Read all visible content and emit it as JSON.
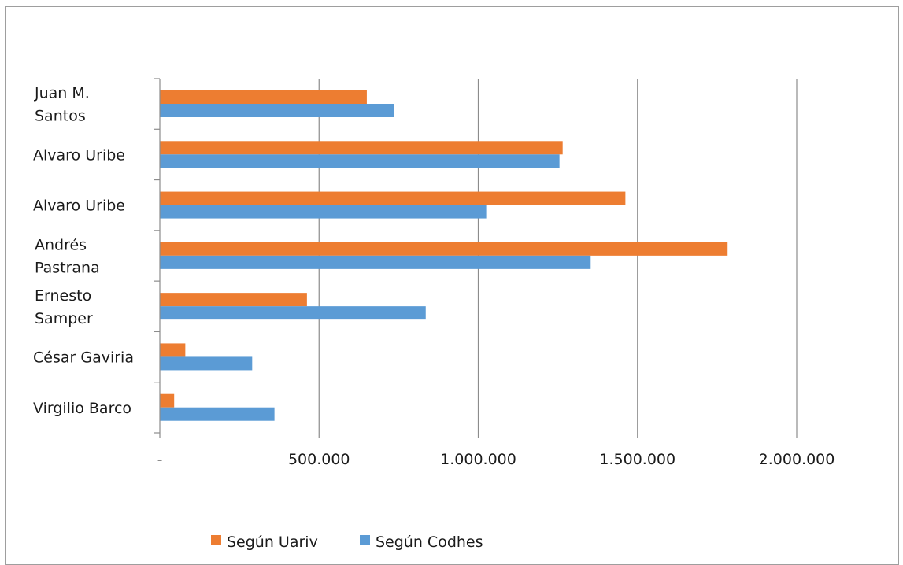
{
  "chart_data": {
    "type": "bar",
    "orientation": "horizontal",
    "categories": [
      [
        "Juan M.",
        "Santos"
      ],
      [
        "Alvaro Uribe"
      ],
      [
        "Alvaro Uribe"
      ],
      [
        "Andrés",
        "Pastrana"
      ],
      [
        "Ernesto",
        "Samper"
      ],
      [
        "César Gaviria"
      ],
      [
        "Virgilio Barco"
      ]
    ],
    "series": [
      {
        "name": "Según Uariv",
        "color": "#ed7d31",
        "values": [
          650000,
          1265000,
          1462000,
          1783000,
          462000,
          80000,
          45000
        ]
      },
      {
        "name": "Según Codhes",
        "color": "#5b9bd5",
        "values": [
          735000,
          1255000,
          1025000,
          1353000,
          835000,
          290000,
          360000
        ]
      }
    ],
    "xlim": [
      0,
      2000000
    ],
    "x_ticks": [
      {
        "value": 0,
        "label": "-"
      },
      {
        "value": 500000,
        "label": "500.000"
      },
      {
        "value": 1000000,
        "label": "1.000.000"
      },
      {
        "value": 1500000,
        "label": "1.500.000"
      },
      {
        "value": 2000000,
        "label": "2.000.000"
      }
    ],
    "grid": "vertical",
    "legend_position": "bottom",
    "title": "",
    "xlabel": "",
    "ylabel": ""
  }
}
